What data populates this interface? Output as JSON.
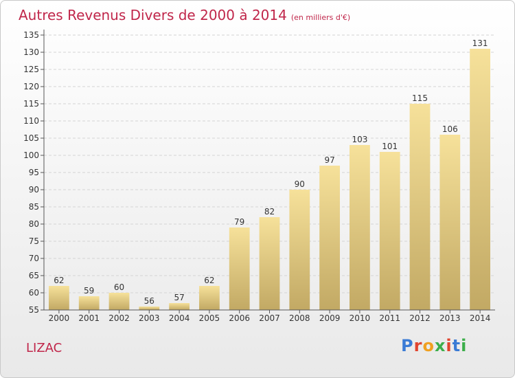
{
  "header": {
    "title": "Autres Revenus Divers de 2000 à 2014",
    "subtitle": "(en milliers d'€)"
  },
  "footer": {
    "place": "LIZAC",
    "logo_text": "Proxiti"
  },
  "colors": {
    "title": "#c0264a",
    "bar_top": "#f6e19a",
    "bar_bottom": "#c2a964",
    "grid": "#d4d4d4",
    "axis": "#555555"
  },
  "chart_data": {
    "type": "bar",
    "title": "Autres Revenus Divers de 2000 à 2014",
    "xlabel": "",
    "ylabel": "",
    "categories": [
      "2000",
      "2001",
      "2002",
      "2003",
      "2004",
      "2005",
      "2006",
      "2007",
      "2008",
      "2009",
      "2010",
      "2011",
      "2012",
      "2013",
      "2014"
    ],
    "values": [
      62,
      59,
      60,
      56,
      57,
      62,
      79,
      82,
      90,
      97,
      103,
      101,
      115,
      106,
      131
    ],
    "ylim": [
      55,
      135
    ],
    "yticks": [
      55,
      60,
      65,
      70,
      75,
      80,
      85,
      90,
      95,
      100,
      105,
      110,
      115,
      120,
      125,
      130,
      135
    ],
    "grid": true,
    "legend": "none"
  }
}
